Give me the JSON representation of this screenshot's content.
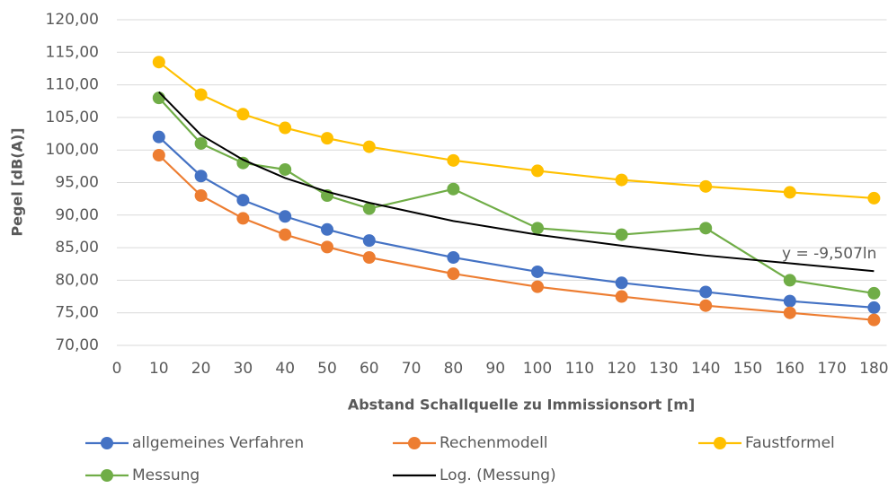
{
  "chart_data": {
    "type": "line",
    "x": [
      10,
      20,
      30,
      40,
      50,
      60,
      80,
      100,
      120,
      140,
      160,
      180
    ],
    "series": [
      {
        "name": "allgemeines Verfahren",
        "color": "#4472c4",
        "values": [
          102,
          96,
          92.3,
          89.8,
          87.8,
          86.1,
          83.5,
          81.3,
          79.6,
          78.2,
          76.8,
          75.8
        ]
      },
      {
        "name": "Rechenmodell",
        "color": "#ed7d31",
        "values": [
          99.2,
          93,
          89.5,
          87,
          85.1,
          83.5,
          81,
          79,
          77.5,
          76.1,
          75,
          73.9
        ]
      },
      {
        "name": "Faustformel",
        "color": "#ffc000",
        "values": [
          113.5,
          108.5,
          105.5,
          103.4,
          101.8,
          100.5,
          98.4,
          96.8,
          95.4,
          94.4,
          93.5,
          92.6
        ]
      },
      {
        "name": "Messung",
        "color": "#70ad47",
        "values": [
          108,
          101,
          98,
          97,
          93,
          91,
          94,
          88,
          87,
          88,
          80,
          78
        ]
      },
      {
        "name": "Log. (Messung)",
        "color": "#000000",
        "markers": false,
        "values": [
          108.9,
          102.3,
          98.5,
          95.7,
          93.6,
          91.9,
          89.1,
          87.0,
          85.3,
          83.8,
          82.6,
          81.4
        ]
      }
    ],
    "x_label": "Abstand Schallquelle zu Immissionsort [m]",
    "y_label": "Pegel [dB(A)]",
    "annotation": "y = -9,507ln",
    "xlim": [
      0,
      183
    ],
    "xticks": [
      0,
      10,
      20,
      30,
      40,
      50,
      60,
      70,
      80,
      90,
      100,
      110,
      120,
      130,
      140,
      150,
      160,
      170,
      180
    ],
    "ylim": [
      70,
      120
    ],
    "yticks": [
      {
        "value": 70,
        "label": "70,00"
      },
      {
        "value": 75,
        "label": "75,00"
      },
      {
        "value": 80,
        "label": "80,00"
      },
      {
        "value": 85,
        "label": "85,00"
      },
      {
        "value": 90,
        "label": "90,00"
      },
      {
        "value": 95,
        "label": "95,00"
      },
      {
        "value": 100,
        "label": "100,00"
      },
      {
        "value": 105,
        "label": "105,00"
      },
      {
        "value": 110,
        "label": "110,00"
      },
      {
        "value": 115,
        "label": "115,00"
      },
      {
        "value": 120,
        "label": "120,00"
      }
    ],
    "grid": true
  }
}
